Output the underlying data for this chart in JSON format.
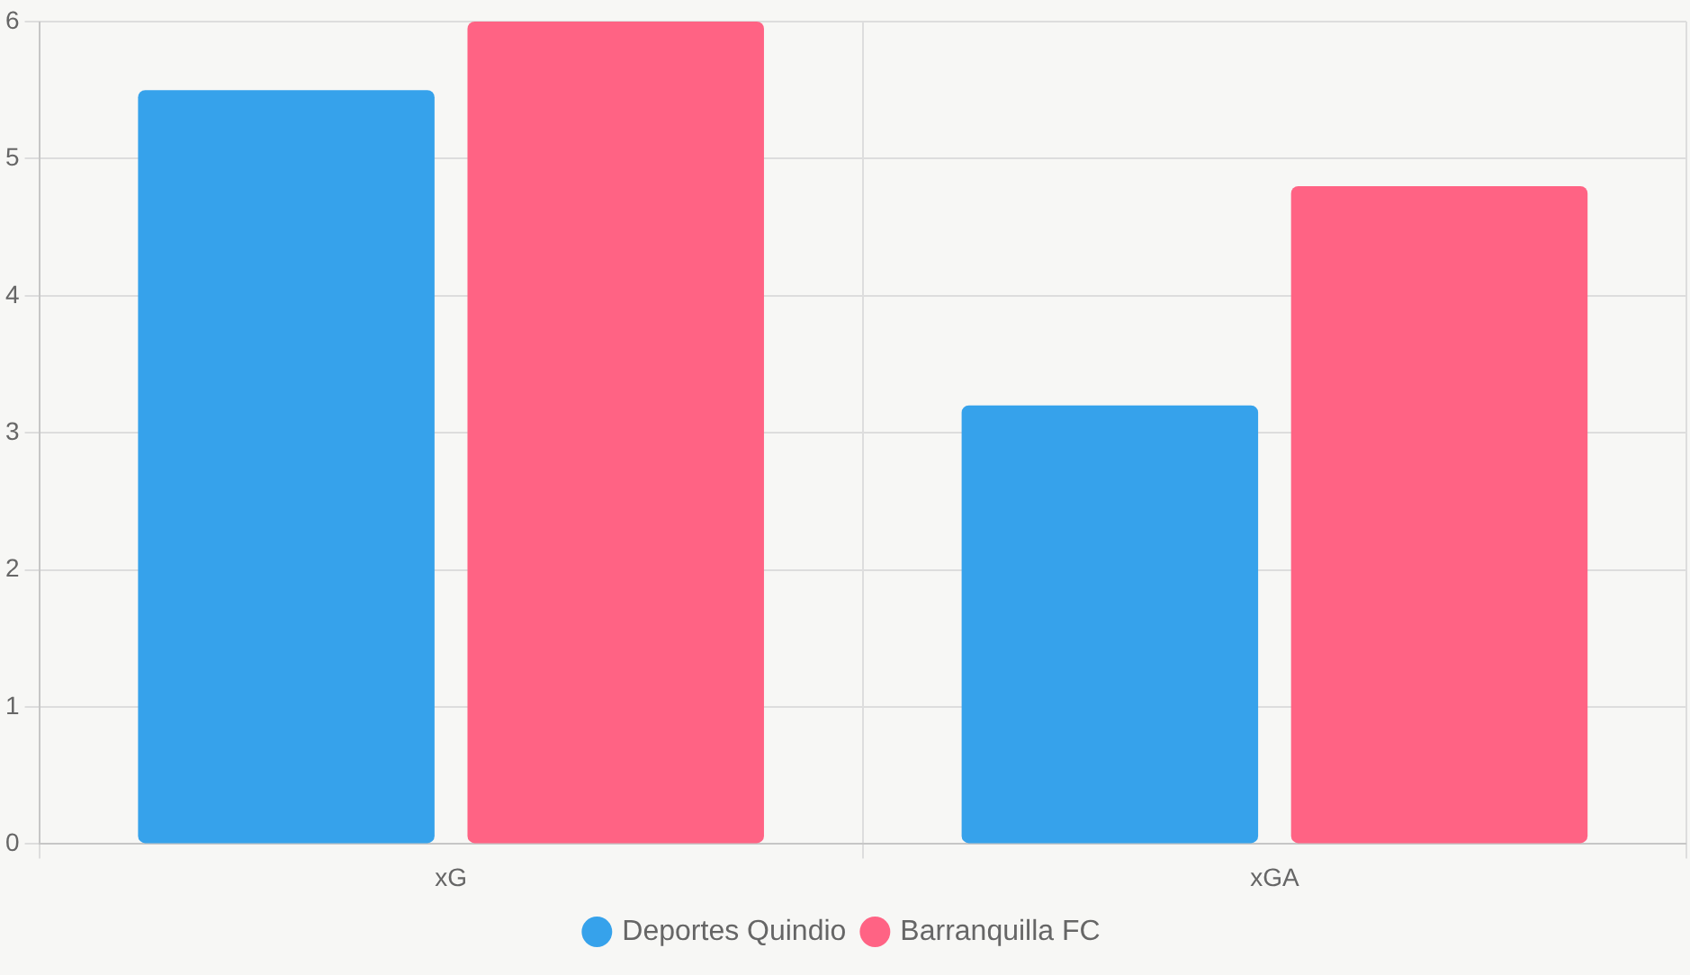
{
  "chart_data": {
    "type": "bar",
    "categories": [
      "xG",
      "xGA"
    ],
    "series": [
      {
        "name": "Deportes Quindio",
        "color": "#36a2eb",
        "values": [
          5.5,
          3.2
        ]
      },
      {
        "name": "Barranquilla FC",
        "color": "#ff6384",
        "values": [
          6.0,
          4.8
        ]
      }
    ],
    "ylim": [
      0,
      6
    ],
    "yticks": [
      0,
      1,
      2,
      3,
      4,
      5,
      6
    ],
    "grid": true,
    "legend": "bottom"
  }
}
